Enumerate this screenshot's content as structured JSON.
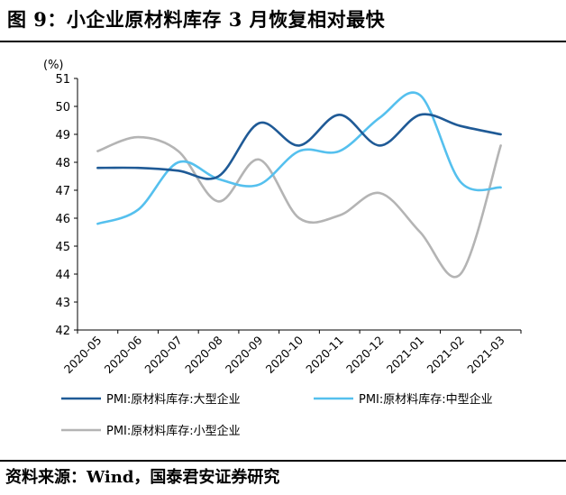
{
  "title": "图 9：小企业原材料库存 3 月恢复相对最快",
  "source": "资料来源：Wind，国泰君安证券研究",
  "chart_data": {
    "type": "line",
    "unit": "(%)",
    "categories": [
      "2020-05",
      "2020-06",
      "2020-07",
      "2020-08",
      "2020-09",
      "2020-10",
      "2020-11",
      "2020-12",
      "2021-01",
      "2021-02",
      "2021-03"
    ],
    "ylim": [
      42,
      51
    ],
    "yticks": [
      42,
      43,
      44,
      45,
      46,
      47,
      48,
      49,
      50,
      51
    ],
    "grid": false,
    "legend_position": "bottom",
    "series": [
      {
        "name": "PMI:原材料库存:大型企业",
        "color": "#1f5a96",
        "values": [
          47.8,
          47.8,
          47.7,
          47.5,
          49.4,
          48.6,
          49.7,
          48.6,
          49.7,
          49.3,
          49.0
        ]
      },
      {
        "name": "PMI:原材料库存:中型企业",
        "color": "#55c0ee",
        "values": [
          45.8,
          46.3,
          48.0,
          47.4,
          47.2,
          48.4,
          48.4,
          49.6,
          50.4,
          47.3,
          47.1
        ]
      },
      {
        "name": "PMI:原材料库存:小型企业",
        "color": "#b4b4b4",
        "values": [
          48.4,
          48.9,
          48.4,
          46.6,
          48.1,
          46.0,
          46.1,
          46.9,
          45.5,
          44.0,
          48.6
        ]
      }
    ]
  }
}
